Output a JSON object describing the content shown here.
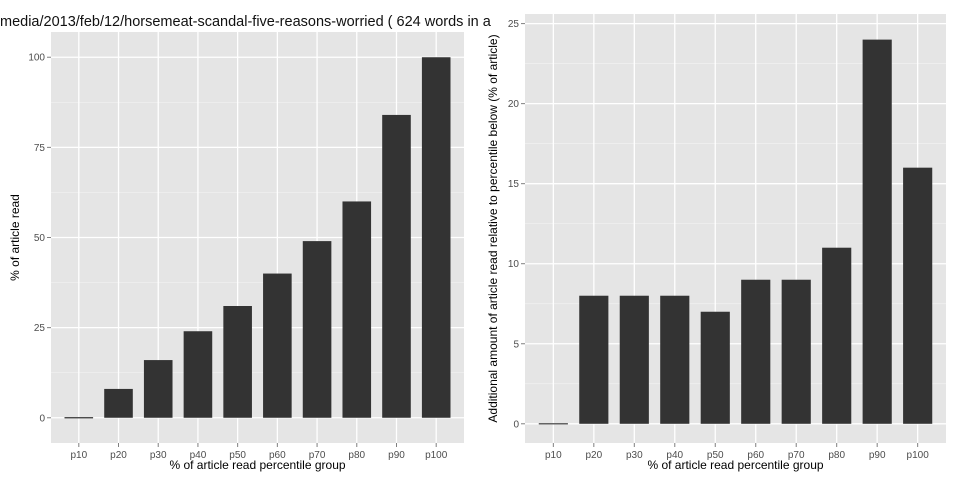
{
  "page": {
    "title": "media/2013/feb/12/horsemeat-scandal-five-reasons-worried ( 624 words in a"
  },
  "chart_data": [
    {
      "type": "bar",
      "title": "media/2013/feb/12/horsemeat-scandal-five-reasons-worried ( 624 words in a",
      "xlabel": "% of article read percentile group",
      "ylabel": "% of article read",
      "categories": [
        "p10",
        "p20",
        "p30",
        "p40",
        "p50",
        "p60",
        "p70",
        "p80",
        "p90",
        "p100"
      ],
      "values": [
        0,
        8,
        16,
        24,
        31,
        40,
        49,
        60,
        84,
        100
      ],
      "ylim": [
        -7,
        107
      ],
      "yticks": [
        0,
        25,
        50,
        75,
        100
      ],
      "ytick_labels": [
        "0",
        "25",
        "50",
        "75",
        "100"
      ],
      "grid": true,
      "colors": {
        "bar": "#333333",
        "panel": "#e5e5e5",
        "grid": "#ffffff"
      }
    },
    {
      "type": "bar",
      "xlabel": "% of article read percentile group",
      "ylabel": "Additional amount of article read relative to percentile below (% of article)",
      "categories": [
        "p10",
        "p20",
        "p30",
        "p40",
        "p50",
        "p60",
        "p70",
        "p80",
        "p90",
        "p100"
      ],
      "values": [
        0,
        8,
        8,
        8,
        7,
        9,
        9,
        11,
        24,
        16
      ],
      "ylim": [
        -1.2,
        25.6
      ],
      "yticks": [
        0,
        5,
        10,
        15,
        20,
        25
      ],
      "ytick_labels": [
        "0",
        "5",
        "10",
        "15",
        "20",
        "25"
      ],
      "grid": true,
      "colors": {
        "bar": "#333333",
        "panel": "#e5e5e5",
        "grid": "#ffffff"
      }
    }
  ]
}
